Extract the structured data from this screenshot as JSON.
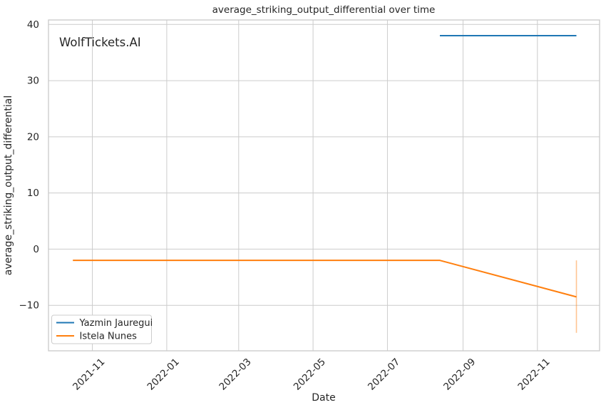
{
  "watermark": "WolfTickets.AI",
  "chart_data": {
    "type": "line",
    "title": "average_striking_output_differential over time",
    "xlabel": "Date",
    "ylabel": "average_striking_output_differential",
    "grid": true,
    "background": "#ffffff",
    "grid_color": "#cccccc",
    "axis_edge_color": "#c9c9c9",
    "text_color": "#262626",
    "watermark_color": "#c7c7c7",
    "xlim": [
      "2021-09-26",
      "2022-12-22"
    ],
    "ylim": [
      -18.1,
      40.8
    ],
    "x_ticks": [
      {
        "date": "2021-11-01",
        "label": "2021-11"
      },
      {
        "date": "2022-01-01",
        "label": "2022-01"
      },
      {
        "date": "2022-03-01",
        "label": "2022-03"
      },
      {
        "date": "2022-05-01",
        "label": "2022-05"
      },
      {
        "date": "2022-07-01",
        "label": "2022-07"
      },
      {
        "date": "2022-09-01",
        "label": "2022-09"
      },
      {
        "date": "2022-11-01",
        "label": "2022-11"
      }
    ],
    "y_ticks": [
      {
        "value": -10,
        "label": "−10"
      },
      {
        "value": 0,
        "label": "0"
      },
      {
        "value": 10,
        "label": "10"
      },
      {
        "value": 20,
        "label": "20"
      },
      {
        "value": 30,
        "label": "30"
      },
      {
        "value": 40,
        "label": "40"
      }
    ],
    "legend": {
      "position": "lower left",
      "labels": [
        "Yazmin Jauregui",
        "Istela Nunes"
      ]
    },
    "series": [
      {
        "name": "Yazmin Jauregui",
        "color": "#1f77b4",
        "points": [
          {
            "date": "2022-08-13",
            "value": 38
          },
          {
            "date": "2022-12-03",
            "value": 38
          }
        ]
      },
      {
        "name": "Istela Nunes",
        "color": "#ff7f0e",
        "points": [
          {
            "date": "2021-10-16",
            "value": -2
          },
          {
            "date": "2022-08-13",
            "value": -2
          },
          {
            "date": "2022-12-03",
            "value": -8.5
          }
        ],
        "error_bar": {
          "date": "2022-12-03",
          "high": -2.0,
          "low": -14.9,
          "color": "rgba(255,127,14,0.45)"
        }
      }
    ]
  }
}
